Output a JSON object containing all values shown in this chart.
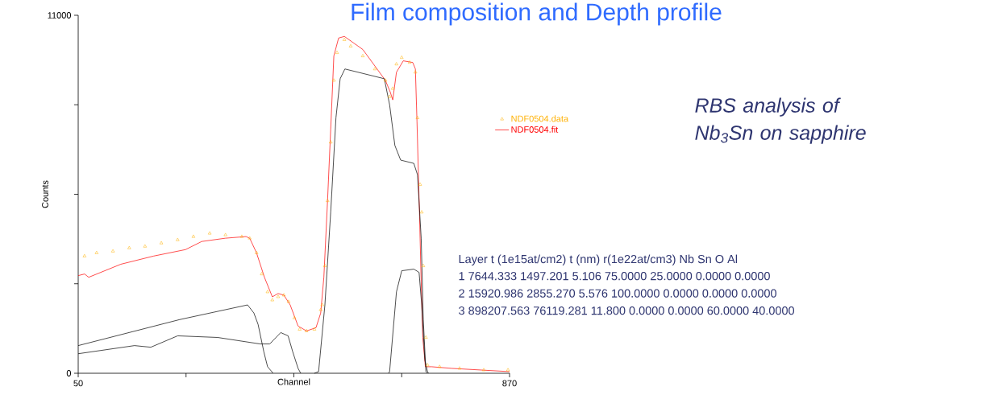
{
  "chart_data": {
    "type": "line",
    "title": "Film composition and Depth profile",
    "xlabel": "Channel",
    "ylabel": "Counts",
    "xlim": [
      50,
      870
    ],
    "ylim": [
      0,
      11000
    ],
    "xticks": [
      50,
      {
        "value": 255,
        "label": null
      },
      {
        "value": 460,
        "label": null
      },
      {
        "value": 665,
        "label": null
      },
      870
    ],
    "yticks": [
      0,
      {
        "value": 2750,
        "label": null
      },
      {
        "value": 5500,
        "label": null
      },
      {
        "value": 8250,
        "label": null
      },
      11000
    ],
    "grid": false,
    "legend": "right",
    "series": [
      {
        "name": "NDF0504.data",
        "type": "scatter",
        "marker": "triangle",
        "color": "#ffb000",
        "x": [
          62,
          85,
          116,
          147,
          177,
          208,
          239,
          269,
          300,
          330,
          361,
          376,
          389,
          399,
          410,
          419,
          430,
          441,
          450,
          461,
          471,
          484,
          499,
          511,
          514,
          519,
          524,
          530,
          536,
          542,
          556,
          568,
          591,
          614,
          634,
          642,
          648,
          655,
          665,
          680,
          691,
          695,
          700,
          703,
          706,
          711,
          714,
          737,
          775,
          821,
          867
        ],
        "values": [
          3600,
          3700,
          3750,
          3850,
          3900,
          4000,
          4100,
          4200,
          4300,
          4250,
          4200,
          4150,
          3700,
          3050,
          2500,
          2250,
          2350,
          2400,
          2200,
          1700,
          1350,
          1300,
          1350,
          1950,
          2100,
          3300,
          5300,
          7100,
          9000,
          9850,
          10250,
          10050,
          9750,
          9350,
          9000,
          8500,
          8750,
          9500,
          9700,
          9550,
          9250,
          7850,
          5800,
          4950,
          3300,
          1100,
          250,
          200,
          150,
          100,
          100
        ]
      },
      {
        "name": "NDF0504.fit",
        "type": "line",
        "color": "#ff0000",
        "x": [
          50,
          62,
          70,
          131,
          193,
          254,
          285,
          330,
          369,
          376,
          389,
          404,
          419,
          430,
          441,
          453,
          468,
          484,
          502,
          511,
          517,
          524,
          530,
          536,
          545,
          556,
          591,
          634,
          643,
          648,
          655,
          668,
          686,
          691,
          694,
          699,
          702,
          705,
          710,
          722,
          760,
          870
        ],
        "values": [
          3000,
          3050,
          2950,
          3350,
          3600,
          3800,
          4050,
          4150,
          4200,
          4150,
          3700,
          2950,
          2350,
          2450,
          2400,
          2100,
          1450,
          1300,
          1400,
          1850,
          2950,
          5300,
          7500,
          9750,
          10300,
          10350,
          9950,
          9000,
          8650,
          8400,
          9250,
          9600,
          9550,
          9350,
          7750,
          4800,
          2800,
          1100,
          200,
          200,
          150,
          50
        ]
      },
      {
        "type": "line",
        "color": "#000000",
        "x": [
          50,
          243,
          372,
          384,
          392,
          403,
          410,
          418,
          420
        ],
        "values": [
          850,
          1650,
          2100,
          1850,
          1500,
          650,
          200,
          50,
          0
        ]
      },
      {
        "type": "line",
        "color": "#000000",
        "x": [
          50,
          157,
          188,
          239,
          315,
          396,
          414,
          435,
          449,
          458,
          468,
          473
        ],
        "values": [
          600,
          850,
          800,
          1150,
          1100,
          900,
          900,
          1250,
          1150,
          650,
          150,
          0
        ]
      },
      {
        "type": "line",
        "color": "#000000",
        "x": [
          499,
          507,
          519,
          530,
          540,
          548,
          557,
          632,
          642,
          652,
          663,
          688,
          695,
          702,
          706,
          711,
          714
        ],
        "values": [
          0,
          50,
          2100,
          4950,
          7850,
          9050,
          9350,
          9050,
          8250,
          7000,
          6550,
          6450,
          6100,
          4150,
          1650,
          50,
          0
        ]
      },
      {
        "type": "line",
        "color": "#000000",
        "x": [
          640,
          642,
          655,
          665,
          688,
          698,
          703,
          709,
          714,
          716
        ],
        "values": [
          0,
          50,
          2500,
          3150,
          3200,
          3100,
          2100,
          400,
          50,
          0
        ]
      }
    ],
    "annotations": [
      "RBS analysis of Nb$_{3}$Sn on sapphire",
      "Layer t (1e15at/cm2) t (nm) r(1e22at/cm3) Nb Sn O Al",
      "1 7644.333 1497.201 5.106 75.0000 25.0000 0.0000 0.0000",
      "2 15920.986 2855.270 5.576 100.0000 0.0000 0.0000 0.0000",
      "3 898207.563 76119.281 11.800 0.0000 0.0000 60.0000 40.0000"
    ]
  }
}
